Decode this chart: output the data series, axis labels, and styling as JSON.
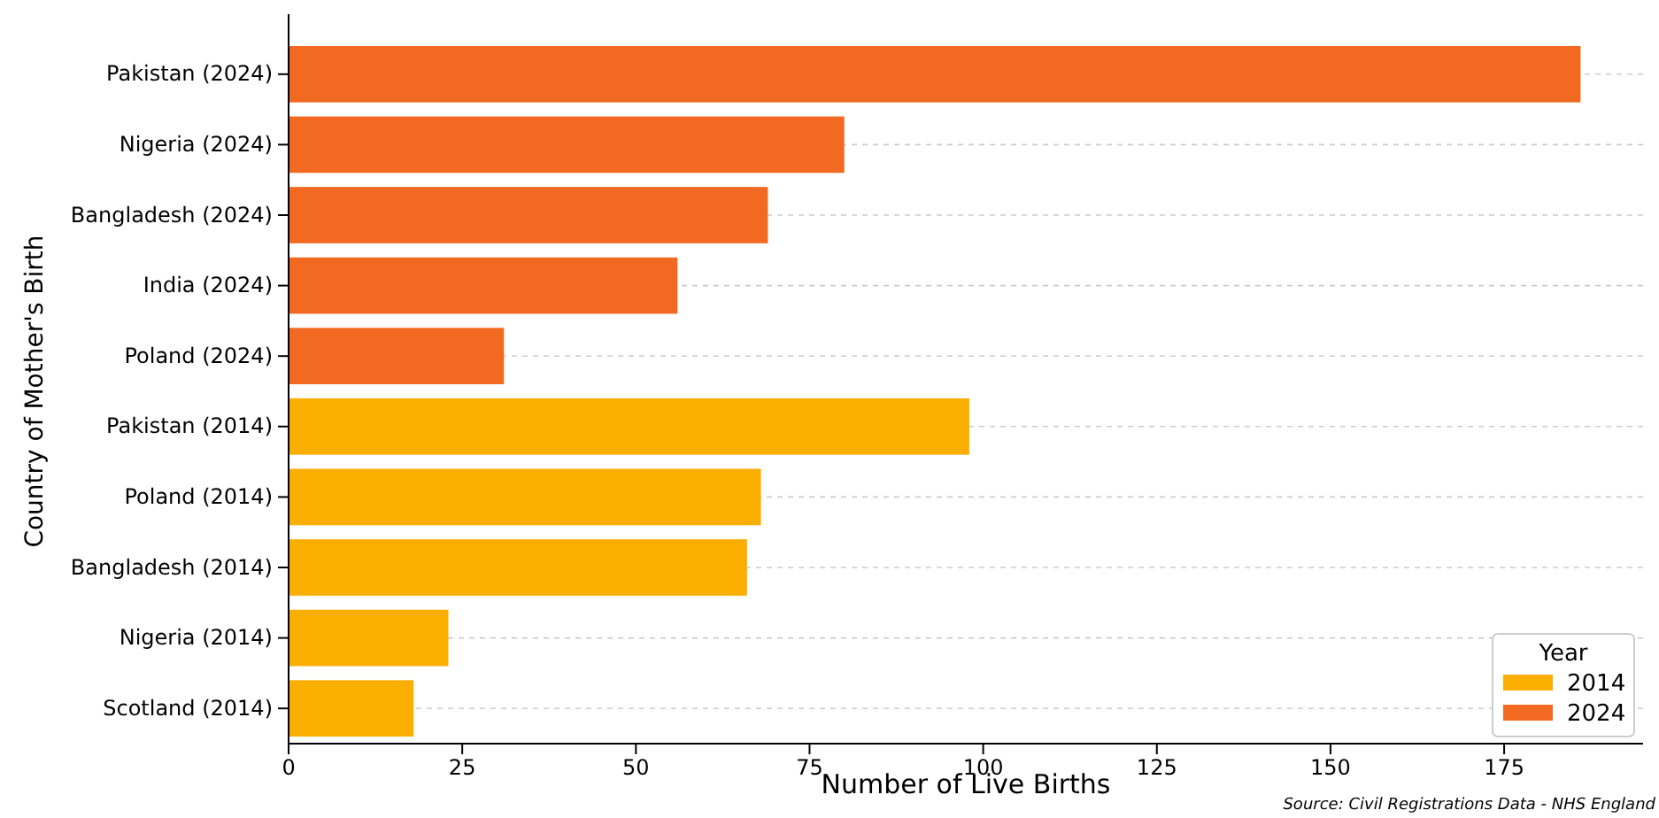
{
  "chart_data": {
    "type": "bar",
    "orientation": "horizontal",
    "xlabel": "Number of Live Births",
    "ylabel": "Country of Mother's Birth",
    "legend_title": "Year",
    "categories": [
      "Pakistan (2024)",
      "Nigeria (2024)",
      "Bangladesh (2024)",
      "India (2024)",
      "Poland (2024)",
      "Pakistan (2014)",
      "Poland (2014)",
      "Bangladesh (2014)",
      "Nigeria (2014)",
      "Scotland (2014)"
    ],
    "series": [
      {
        "name": "2014",
        "color": "#f9ae00",
        "values": [
          null,
          null,
          null,
          null,
          null,
          98,
          68,
          66,
          23,
          18
        ]
      },
      {
        "name": "2024",
        "color": "#f26922",
        "values": [
          186,
          80,
          69,
          56,
          31,
          null,
          null,
          null,
          null,
          null
        ]
      }
    ],
    "xlim": [
      0,
      195
    ],
    "xticks": [
      0,
      25,
      50,
      75,
      100,
      125,
      150,
      175
    ],
    "grid": "y",
    "legend": "bottom right",
    "annotations": [
      "Source: Civil Registrations Data - NHS England"
    ]
  }
}
